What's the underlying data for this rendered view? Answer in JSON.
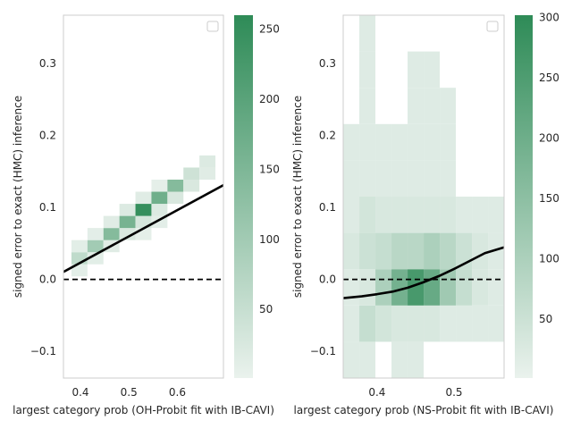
{
  "figure": {
    "panels": [
      "left",
      "right"
    ]
  },
  "chart_data": [
    {
      "type": "heatmap",
      "panel": "left",
      "title": "",
      "xlabel": "largest category prob (OH-Probit fit with IB-CAVI)",
      "ylabel": "signed error to exact (HMC) inference",
      "xlim": [
        0.365,
        0.695
      ],
      "ylim": [
        -0.137,
        0.367
      ],
      "xticks": [
        0.4,
        0.5,
        0.6
      ],
      "xtick_labels": [
        "0.4",
        "0.5",
        "0.6"
      ],
      "yticks": [
        -0.1,
        0.0,
        0.1,
        0.2,
        0.3
      ],
      "ytick_labels": [
        "−0.1",
        "0.0",
        "0.1",
        "0.2",
        "0.3"
      ],
      "bin_size": {
        "x": 0.033,
        "y": 0.0168
      },
      "cells": [
        {
          "x": 0.398,
          "y": 0.0126,
          "count": 10
        },
        {
          "x": 0.398,
          "y": 0.0294,
          "count": 60
        },
        {
          "x": 0.398,
          "y": 0.0462,
          "count": 12
        },
        {
          "x": 0.431,
          "y": 0.0294,
          "count": 12
        },
        {
          "x": 0.431,
          "y": 0.0462,
          "count": 100
        },
        {
          "x": 0.431,
          "y": 0.063,
          "count": 10
        },
        {
          "x": 0.464,
          "y": 0.0462,
          "count": 15
        },
        {
          "x": 0.464,
          "y": 0.063,
          "count": 140
        },
        {
          "x": 0.464,
          "y": 0.0798,
          "count": 15
        },
        {
          "x": 0.497,
          "y": 0.063,
          "count": 25
        },
        {
          "x": 0.497,
          "y": 0.0798,
          "count": 160
        },
        {
          "x": 0.497,
          "y": 0.0966,
          "count": 20
        },
        {
          "x": 0.53,
          "y": 0.063,
          "count": 8
        },
        {
          "x": 0.53,
          "y": 0.0798,
          "count": 30
        },
        {
          "x": 0.53,
          "y": 0.0966,
          "count": 250
        },
        {
          "x": 0.53,
          "y": 0.1134,
          "count": 15
        },
        {
          "x": 0.563,
          "y": 0.0798,
          "count": 10
        },
        {
          "x": 0.563,
          "y": 0.0966,
          "count": 20
        },
        {
          "x": 0.563,
          "y": 0.1134,
          "count": 170
        },
        {
          "x": 0.563,
          "y": 0.1302,
          "count": 8
        },
        {
          "x": 0.596,
          "y": 0.1134,
          "count": 25
        },
        {
          "x": 0.596,
          "y": 0.1302,
          "count": 140
        },
        {
          "x": 0.629,
          "y": 0.1302,
          "count": 25
        },
        {
          "x": 0.629,
          "y": 0.147,
          "count": 40
        },
        {
          "x": 0.662,
          "y": 0.147,
          "count": 15
        },
        {
          "x": 0.662,
          "y": 0.1638,
          "count": 20
        }
      ],
      "fit_line": {
        "x": [
          0.365,
          0.695
        ],
        "y": [
          0.0105,
          0.131
        ]
      },
      "reference_line": {
        "y": 0.0,
        "style": "dashed"
      },
      "colorbar": {
        "vmin": 1,
        "vmax": 260,
        "ticks": [
          50,
          100,
          150,
          200,
          250
        ],
        "tick_labels": [
          "50",
          "100",
          "150",
          "200",
          "250"
        ]
      },
      "legend": {
        "placement": "top-right",
        "entries": []
      }
    },
    {
      "type": "heatmap",
      "panel": "right",
      "title": "",
      "xlabel": "largest category prob (NS-Probit fit with IB-CAVI)",
      "ylabel": "signed error to exact (HMC) inference",
      "xlim": [
        0.356,
        0.565
      ],
      "ylim": [
        -0.137,
        0.367
      ],
      "xticks": [
        0.4,
        0.5
      ],
      "xtick_labels": [
        "0.4",
        "0.5"
      ],
      "yticks": [
        -0.1,
        0.0,
        0.1,
        0.2,
        0.3
      ],
      "ytick_labels": [
        "−0.1",
        "0.0",
        "0.1",
        "0.2",
        "0.3"
      ],
      "bin_size": {
        "x": 0.0209,
        "y": 0.0504
      },
      "cells": [
        {
          "x": 0.3665,
          "y": -0.1118,
          "count": 20
        },
        {
          "x": 0.3665,
          "y": -0.0614,
          "count": 20
        },
        {
          "x": 0.3665,
          "y": -0.011,
          "count": 20
        },
        {
          "x": 0.3665,
          "y": 0.0394,
          "count": 30
        },
        {
          "x": 0.3665,
          "y": 0.0898,
          "count": 20
        },
        {
          "x": 0.3665,
          "y": 0.1402,
          "count": 20
        },
        {
          "x": 0.3665,
          "y": 0.1906,
          "count": 20
        },
        {
          "x": 0.3874,
          "y": -0.1118,
          "count": 20
        },
        {
          "x": 0.3874,
          "y": -0.0614,
          "count": 60
        },
        {
          "x": 0.3874,
          "y": -0.011,
          "count": 30
        },
        {
          "x": 0.3874,
          "y": 0.0394,
          "count": 50
        },
        {
          "x": 0.3874,
          "y": 0.0898,
          "count": 40
        },
        {
          "x": 0.3874,
          "y": 0.1402,
          "count": 20
        },
        {
          "x": 0.3874,
          "y": 0.1906,
          "count": 20
        },
        {
          "x": 0.3874,
          "y": 0.241,
          "count": 20
        },
        {
          "x": 0.3874,
          "y": 0.2914,
          "count": 20
        },
        {
          "x": 0.3874,
          "y": 0.3418,
          "count": 20
        },
        {
          "x": 0.4083,
          "y": -0.0614,
          "count": 40
        },
        {
          "x": 0.4083,
          "y": -0.011,
          "count": 100
        },
        {
          "x": 0.4083,
          "y": 0.0394,
          "count": 60
        },
        {
          "x": 0.4083,
          "y": 0.0898,
          "count": 30
        },
        {
          "x": 0.4083,
          "y": 0.1402,
          "count": 20
        },
        {
          "x": 0.4083,
          "y": 0.1906,
          "count": 20
        },
        {
          "x": 0.4292,
          "y": -0.1118,
          "count": 20
        },
        {
          "x": 0.4292,
          "y": -0.0614,
          "count": 30
        },
        {
          "x": 0.4292,
          "y": -0.011,
          "count": 190
        },
        {
          "x": 0.4292,
          "y": 0.0394,
          "count": 80
        },
        {
          "x": 0.4292,
          "y": 0.0898,
          "count": 30
        },
        {
          "x": 0.4292,
          "y": 0.1402,
          "count": 20
        },
        {
          "x": 0.4292,
          "y": 0.1906,
          "count": 20
        },
        {
          "x": 0.4501,
          "y": -0.1118,
          "count": 20
        },
        {
          "x": 0.4501,
          "y": -0.0614,
          "count": 30
        },
        {
          "x": 0.4501,
          "y": -0.011,
          "count": 260
        },
        {
          "x": 0.4501,
          "y": 0.0394,
          "count": 80
        },
        {
          "x": 0.4501,
          "y": 0.0898,
          "count": 30
        },
        {
          "x": 0.4501,
          "y": 0.1402,
          "count": 20
        },
        {
          "x": 0.4501,
          "y": 0.1906,
          "count": 20
        },
        {
          "x": 0.4501,
          "y": 0.241,
          "count": 20
        },
        {
          "x": 0.4501,
          "y": 0.2914,
          "count": 20
        },
        {
          "x": 0.471,
          "y": -0.0614,
          "count": 30
        },
        {
          "x": 0.471,
          "y": -0.011,
          "count": 210
        },
        {
          "x": 0.471,
          "y": 0.0394,
          "count": 100
        },
        {
          "x": 0.471,
          "y": 0.0898,
          "count": 30
        },
        {
          "x": 0.471,
          "y": 0.1402,
          "count": 20
        },
        {
          "x": 0.471,
          "y": 0.1906,
          "count": 20
        },
        {
          "x": 0.471,
          "y": 0.241,
          "count": 20
        },
        {
          "x": 0.471,
          "y": 0.2914,
          "count": 20
        },
        {
          "x": 0.4919,
          "y": -0.0614,
          "count": 20
        },
        {
          "x": 0.4919,
          "y": -0.011,
          "count": 120
        },
        {
          "x": 0.4919,
          "y": 0.0394,
          "count": 80
        },
        {
          "x": 0.4919,
          "y": 0.0898,
          "count": 30
        },
        {
          "x": 0.4919,
          "y": 0.1402,
          "count": 20
        },
        {
          "x": 0.4919,
          "y": 0.1906,
          "count": 20
        },
        {
          "x": 0.4919,
          "y": 0.241,
          "count": 20
        },
        {
          "x": 0.5128,
          "y": -0.0614,
          "count": 20
        },
        {
          "x": 0.5128,
          "y": -0.011,
          "count": 60
        },
        {
          "x": 0.5128,
          "y": 0.0394,
          "count": 50
        },
        {
          "x": 0.5128,
          "y": 0.0898,
          "count": 20
        },
        {
          "x": 0.5337,
          "y": -0.0614,
          "count": 20
        },
        {
          "x": 0.5337,
          "y": -0.011,
          "count": 30
        },
        {
          "x": 0.5337,
          "y": 0.0394,
          "count": 30
        },
        {
          "x": 0.5337,
          "y": 0.0898,
          "count": 20
        },
        {
          "x": 0.5546,
          "y": -0.0614,
          "count": 20
        },
        {
          "x": 0.5546,
          "y": -0.011,
          "count": 20
        },
        {
          "x": 0.5546,
          "y": 0.0394,
          "count": 20
        },
        {
          "x": 0.5546,
          "y": 0.0898,
          "count": 20
        }
      ],
      "fit_line": {
        "x": [
          0.356,
          0.38,
          0.4,
          0.42,
          0.44,
          0.46,
          0.48,
          0.5,
          0.52,
          0.54,
          0.565
        ],
        "y": [
          -0.026,
          -0.0235,
          -0.0205,
          -0.017,
          -0.0115,
          -0.004,
          0.0045,
          0.0145,
          0.0255,
          0.0365,
          0.0445
        ]
      },
      "reference_line": {
        "y": 0.0,
        "style": "dashed"
      },
      "colorbar": {
        "vmin": 1,
        "vmax": 302,
        "ticks": [
          50,
          100,
          150,
          200,
          250,
          300
        ],
        "tick_labels": [
          "50",
          "100",
          "150",
          "200",
          "250",
          "300"
        ]
      },
      "legend": {
        "placement": "top-right",
        "entries": []
      }
    }
  ]
}
